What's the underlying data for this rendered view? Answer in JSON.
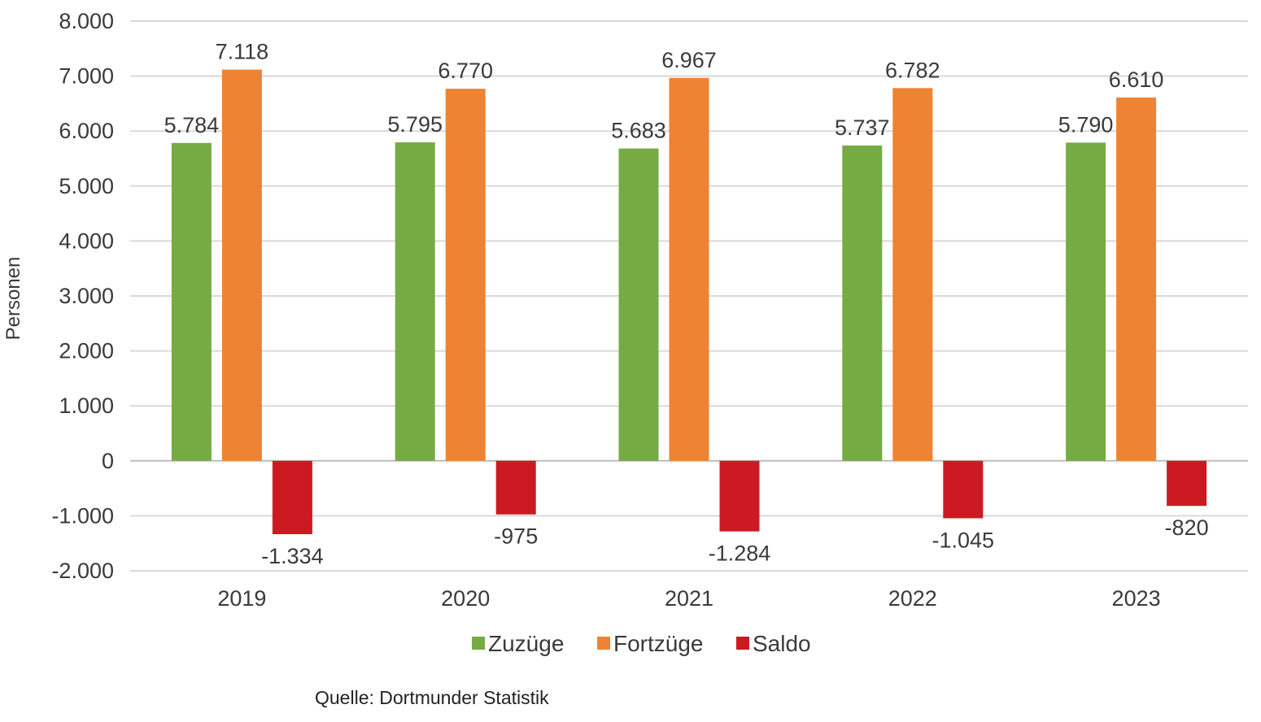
{
  "chart_data": {
    "type": "bar",
    "categories": [
      "2019",
      "2020",
      "2021",
      "2022",
      "2023"
    ],
    "series": [
      {
        "name": "Zuzüge",
        "color": "#76ab44",
        "values": [
          5784,
          5795,
          5683,
          5737,
          5790
        ],
        "labels": [
          "5.784",
          "5.795",
          "5.683",
          "5.737",
          "5.790"
        ]
      },
      {
        "name": "Fortzüge",
        "color": "#ee8334",
        "values": [
          7118,
          6770,
          6967,
          6782,
          6610
        ],
        "labels": [
          "7.118",
          "6.770",
          "6.967",
          "6.782",
          "6.610"
        ]
      },
      {
        "name": "Saldo",
        "color": "#cc1a22",
        "values": [
          -1334,
          -975,
          -1284,
          -1045,
          -820
        ],
        "labels": [
          "-1.334",
          "-975",
          "-1.284",
          "-1.045",
          "-820"
        ]
      }
    ],
    "ylabel": "Personen",
    "ylim": [
      -2000,
      8000
    ],
    "yticks": [
      8000,
      7000,
      6000,
      5000,
      4000,
      3000,
      2000,
      1000,
      0,
      -1000,
      -2000
    ],
    "ytick_labels": [
      "8.000",
      "7.000",
      "6.000",
      "5.000",
      "4.000",
      "3.000",
      "2.000",
      "1.000",
      "0",
      "-1.000",
      "-2.000"
    ],
    "grid": true,
    "legend_position": "bottom"
  },
  "source": "Quelle: Dortmunder Statistik"
}
